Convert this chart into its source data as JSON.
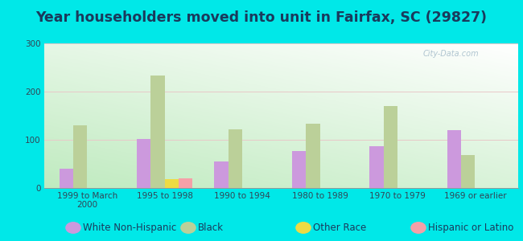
{
  "title": "Year householders moved into unit in Fairfax, SC (29827)",
  "categories": [
    "1999 to March\n2000",
    "1995 to 1998",
    "1990 to 1994",
    "1980 to 1989",
    "1970 to 1979",
    "1969 or earlier"
  ],
  "series": {
    "White Non-Hispanic": [
      40,
      102,
      55,
      76,
      87,
      120
    ],
    "Black": [
      130,
      233,
      122,
      133,
      170,
      68
    ],
    "Other Race": [
      0,
      18,
      0,
      0,
      0,
      0
    ],
    "Hispanic or Latino": [
      0,
      20,
      0,
      0,
      0,
      0
    ]
  },
  "colors": {
    "White Non-Hispanic": "#cc99dd",
    "Black": "#bbd099",
    "Other Race": "#eedb44",
    "Hispanic or Latino": "#f5a0a8"
  },
  "ylim": [
    0,
    300
  ],
  "yticks": [
    0,
    100,
    200,
    300
  ],
  "outer_background": "#00e8e8",
  "bar_width": 0.18,
  "legend_fontsize": 8.5,
  "title_fontsize": 12.5,
  "title_color": "#1a3a5c"
}
